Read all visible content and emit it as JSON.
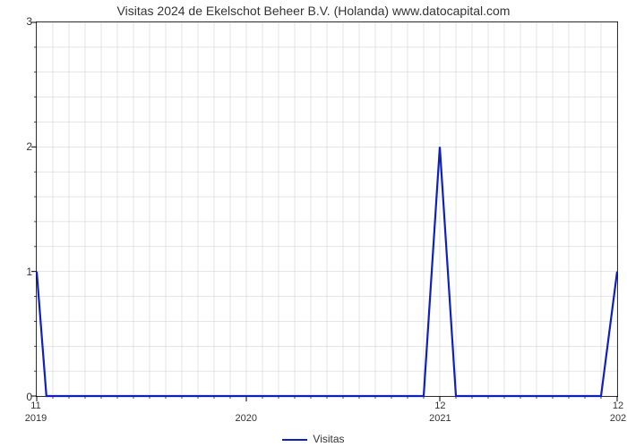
{
  "chart": {
    "type": "line",
    "title": "Visitas 2024 de Ekelschot Beheer B.V. (Holanda) www.datocapital.com",
    "title_fontsize": 14,
    "title_color": "#333333",
    "background_color": "#ffffff",
    "plot_border_color": "#000000",
    "grid_color": "#cccccc",
    "grid_width": 0.5,
    "line_color": "#1020c0",
    "line_width": 2.2,
    "x": {
      "min": 0,
      "max": 36,
      "major_ticks": [
        {
          "pos": 0,
          "top_label": "11",
          "bottom_label": "2019"
        },
        {
          "pos": 13,
          "top_label": "",
          "bottom_label": "2020"
        },
        {
          "pos": 25,
          "top_label": "12",
          "bottom_label": "2021"
        },
        {
          "pos": 36,
          "top_label": "12",
          "bottom_label": "202"
        }
      ],
      "minor_step": 1
    },
    "y": {
      "min": 0,
      "max": 3,
      "major_ticks": [
        0,
        1,
        2,
        3
      ],
      "minor_count_between": 4
    },
    "series": [
      {
        "name": "Visitas",
        "points": [
          [
            0,
            1.0
          ],
          [
            0.6,
            0.0
          ],
          [
            24.0,
            0.0
          ],
          [
            25.0,
            2.0
          ],
          [
            26.0,
            0.0
          ],
          [
            35.0,
            0.0
          ],
          [
            36.0,
            1.0
          ]
        ]
      }
    ],
    "legend_label": "Visitas"
  }
}
